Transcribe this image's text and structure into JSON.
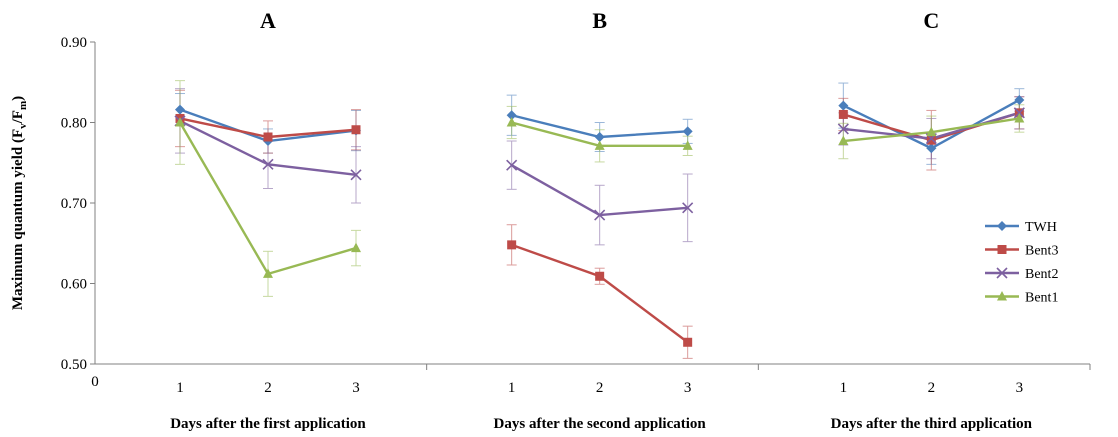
{
  "chart_data": {
    "type": "line",
    "ylabel_main": "Maximum quantum yield (F",
    "ylabel_sub1": "v",
    "ylabel_mid": "/F",
    "ylabel_sub2": "m",
    "ylabel_end": ")",
    "ylim": [
      0.5,
      0.9
    ],
    "yticks": [
      "0.50",
      "0.60",
      "0.70",
      "0.80",
      "0.90"
    ],
    "origin_label": "0",
    "grid": false,
    "legend_position": "right",
    "series_styles": [
      {
        "name": "TWH",
        "color": "#4a7ebb",
        "marker": "diamond"
      },
      {
        "name": "Bent3",
        "color": "#be4b48",
        "marker": "square"
      },
      {
        "name": "Bent2",
        "color": "#7d60a0",
        "marker": "x"
      },
      {
        "name": "Bent1",
        "color": "#98b954",
        "marker": "triangle"
      }
    ],
    "panels": [
      {
        "title": "A",
        "xlabel": "Days after the first application",
        "categories": [
          "1",
          "2",
          "3"
        ],
        "series": [
          {
            "name": "TWH",
            "values": [
              0.816,
              0.777,
              0.79
            ],
            "errors": [
              0.02,
              0.015,
              0.025
            ]
          },
          {
            "name": "Bent3",
            "values": [
              0.805,
              0.782,
              0.791
            ],
            "errors": [
              0.035,
              0.02,
              0.025
            ]
          },
          {
            "name": "Bent2",
            "values": [
              0.802,
              0.748,
              0.735
            ],
            "errors": [
              0.04,
              0.03,
              0.035
            ]
          },
          {
            "name": "Bent1",
            "values": [
              0.8,
              0.612,
              0.644
            ],
            "errors": [
              0.052,
              0.028,
              0.022
            ]
          }
        ]
      },
      {
        "title": "B",
        "xlabel": "Days after the second application",
        "categories": [
          "1",
          "2",
          "3"
        ],
        "series": [
          {
            "name": "TWH",
            "values": [
              0.809,
              0.782,
              0.789
            ],
            "errors": [
              0.025,
              0.018,
              0.015
            ]
          },
          {
            "name": "Bent3",
            "values": [
              0.648,
              0.609,
              0.527
            ],
            "errors": [
              0.025,
              0.01,
              0.02
            ]
          },
          {
            "name": "Bent2",
            "values": [
              0.747,
              0.685,
              0.694
            ],
            "errors": [
              0.03,
              0.037,
              0.042
            ]
          },
          {
            "name": "Bent1",
            "values": [
              0.8,
              0.771,
              0.771
            ],
            "errors": [
              0.02,
              0.02,
              0.012
            ]
          }
        ]
      },
      {
        "title": "C",
        "xlabel": "Days after the third application",
        "categories": [
          "1",
          "2",
          "3"
        ],
        "series": [
          {
            "name": "TWH",
            "values": [
              0.821,
              0.768,
              0.828
            ],
            "errors": [
              0.028,
              0.02,
              0.014
            ]
          },
          {
            "name": "Bent3",
            "values": [
              0.81,
              0.778,
              0.812
            ],
            "errors": [
              0.02,
              0.037,
              0.02
            ]
          },
          {
            "name": "Bent2",
            "values": [
              0.792,
              0.78,
              0.812
            ],
            "errors": [
              0.02,
              0.025,
              0.02
            ]
          },
          {
            "name": "Bent1",
            "values": [
              0.777,
              0.788,
              0.805
            ],
            "errors": [
              0.022,
              0.02,
              0.017
            ]
          }
        ]
      }
    ]
  }
}
